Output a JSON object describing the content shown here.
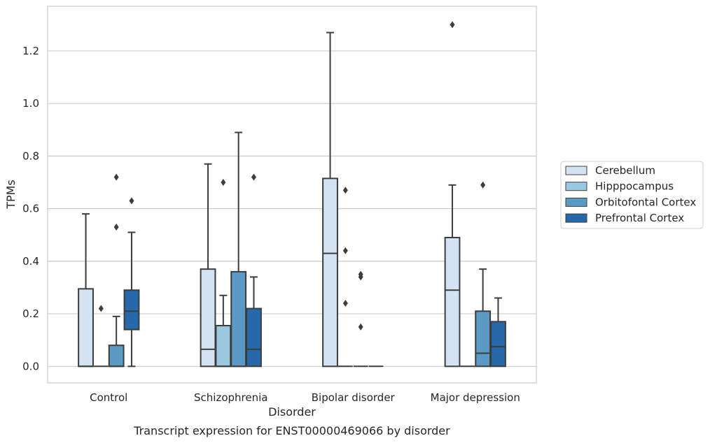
{
  "chart_data": {
    "type": "box",
    "caption": "Transcript expression for ENST00000469066 by disorder",
    "xlabel": "Disorder",
    "ylabel": "TPMs",
    "ylim": [
      -0.063,
      1.37
    ],
    "yticks": [
      "0.0",
      "0.2",
      "0.4",
      "0.6",
      "0.8",
      "1.0",
      "1.2"
    ],
    "ytick_values": [
      0,
      0.2,
      0.4,
      0.6,
      0.8,
      1.0,
      1.2
    ],
    "grid": true,
    "legend_position": "right",
    "categories": [
      "Control",
      "Schizophrenia",
      "Bipolar disorder",
      "Major depression"
    ],
    "series": [
      {
        "name": "Cerebellum",
        "color": "#d3e3f3",
        "boxes": [
          {
            "whislo": 0,
            "q1": 0,
            "med": 0,
            "q3": 0.295,
            "whishi": 0.58,
            "fliers": []
          },
          {
            "whislo": 0,
            "q1": 0,
            "med": 0.065,
            "q3": 0.37,
            "whishi": 0.77,
            "fliers": []
          },
          {
            "whislo": 0,
            "q1": 0,
            "med": 0.43,
            "q3": 0.715,
            "whishi": 1.27,
            "fliers": []
          },
          {
            "whislo": 0,
            "q1": 0,
            "med": 0.29,
            "q3": 0.49,
            "whishi": 0.69,
            "fliers": [
              1.3
            ]
          }
        ]
      },
      {
        "name": "Hipppocampus",
        "color": "#9ac8e0",
        "boxes": [
          {
            "whislo": 0,
            "q1": 0,
            "med": 0,
            "q3": 0,
            "whishi": 0,
            "fliers": [
              0.22
            ]
          },
          {
            "whislo": 0,
            "q1": 0,
            "med": 0,
            "q3": 0.155,
            "whishi": 0.27,
            "fliers": [
              0.7
            ]
          },
          {
            "whislo": 0,
            "q1": 0,
            "med": 0,
            "q3": 0,
            "whishi": 0,
            "fliers": [
              0.24,
              0.44,
              0.67
            ]
          },
          {
            "whislo": 0,
            "q1": 0,
            "med": 0,
            "q3": 0,
            "whishi": 0,
            "fliers": []
          }
        ]
      },
      {
        "name": "Orbitofontal Cortex",
        "color": "#5a9ac5",
        "boxes": [
          {
            "whislo": 0,
            "q1": 0,
            "med": 0,
            "q3": 0.08,
            "whishi": 0.19,
            "fliers": [
              0.53,
              0.72
            ]
          },
          {
            "whislo": 0,
            "q1": 0,
            "med": 0,
            "q3": 0.36,
            "whishi": 0.89,
            "fliers": []
          },
          {
            "whislo": 0,
            "q1": 0,
            "med": 0,
            "q3": 0,
            "whishi": 0,
            "fliers": [
              0.15,
              0.34,
              0.35
            ]
          },
          {
            "whislo": 0,
            "q1": 0,
            "med": 0.05,
            "q3": 0.21,
            "whishi": 0.37,
            "fliers": [
              0.69
            ]
          }
        ]
      },
      {
        "name": "Prefrontal Cortex",
        "color": "#2569ab",
        "boxes": [
          {
            "whislo": 0,
            "q1": 0.14,
            "med": 0.21,
            "q3": 0.29,
            "whishi": 0.51,
            "fliers": [
              0.63
            ]
          },
          {
            "whislo": 0,
            "q1": 0,
            "med": 0.065,
            "q3": 0.22,
            "whishi": 0.34,
            "fliers": [
              0.72
            ]
          },
          {
            "whislo": 0,
            "q1": 0,
            "med": 0,
            "q3": 0,
            "whishi": 0,
            "fliers": []
          },
          {
            "whislo": 0,
            "q1": 0,
            "med": 0.075,
            "q3": 0.17,
            "whishi": 0.26,
            "fliers": []
          }
        ]
      }
    ]
  }
}
